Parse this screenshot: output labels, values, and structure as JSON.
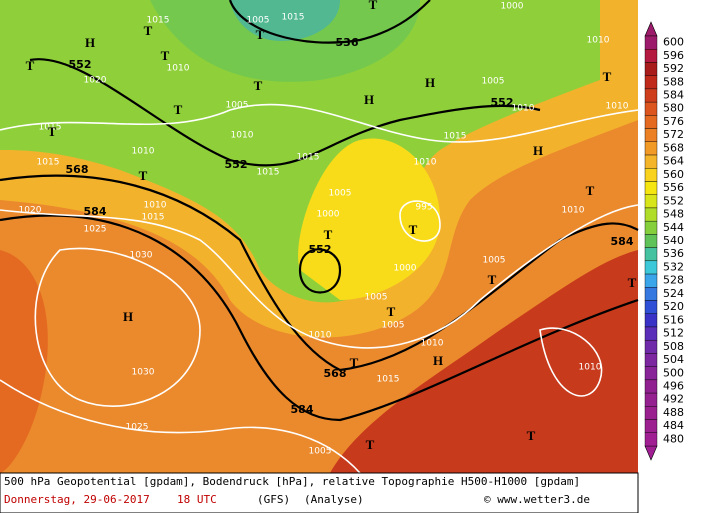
{
  "map": {
    "labels": [
      "552",
      "552",
      "552",
      "552",
      "536",
      "568",
      "584",
      "568",
      "584",
      "584",
      "1015",
      "1015",
      "1010",
      "1005",
      "1005",
      "1010",
      "1015",
      "1010",
      "1015",
      "1015",
      "1015",
      "1020",
      "1025",
      "1010",
      "1015",
      "1030",
      "1030",
      "1025",
      "1005",
      "1000",
      "995",
      "1000",
      "1005",
      "1005",
      "1010",
      "1010",
      "1015",
      "1005",
      "1010",
      "1010",
      "1015",
      "1010",
      "1005",
      "1010",
      "1010",
      "1010",
      "1000",
      "1005",
      "1020"
    ],
    "pressure_systems": [
      "H",
      "T",
      "T",
      "T",
      "T",
      "T",
      "T",
      "T",
      "H",
      "T",
      "T",
      "T",
      "T",
      "H",
      "T",
      "T",
      "T",
      "T",
      "H",
      "T",
      "H",
      "H",
      "T",
      "T",
      "T"
    ]
  },
  "colorbar": {
    "values": [
      600,
      596,
      592,
      588,
      584,
      580,
      576,
      572,
      568,
      564,
      560,
      556,
      552,
      548,
      544,
      540,
      536,
      532,
      528,
      524,
      520,
      516,
      512,
      508,
      504,
      500,
      496,
      492,
      488,
      484,
      480
    ],
    "colors": [
      "#9c1b6a",
      "#b4193f",
      "#a81c1c",
      "#c02a1a",
      "#cf3e1c",
      "#dc551e",
      "#e46a22",
      "#ec8024",
      "#f19a26",
      "#f5b52a",
      "#f8d21c",
      "#f5e510",
      "#d8e51a",
      "#b0dc2a",
      "#86cf3c",
      "#60c35a",
      "#45c2a0",
      "#3cc8d8",
      "#3aa5e8",
      "#3478e0",
      "#2f4fd6",
      "#3a32c6",
      "#5a2eb8",
      "#6e2aa8",
      "#7c26a0",
      "#882398",
      "#902090",
      "#952090",
      "#9a2090",
      "#9c2090",
      "#a02094"
    ]
  },
  "footer": {
    "line1": "500 hPa Geopotential [gpdam], Bodendruck [hPa], relative Topographie H500-H1000 [gpdam]",
    "date": "Donnerstag, 29-06-2017",
    "time": "18 UTC",
    "model": "(GFS)",
    "run": "(Analyse)",
    "credit": "© www.wetter3.de"
  }
}
